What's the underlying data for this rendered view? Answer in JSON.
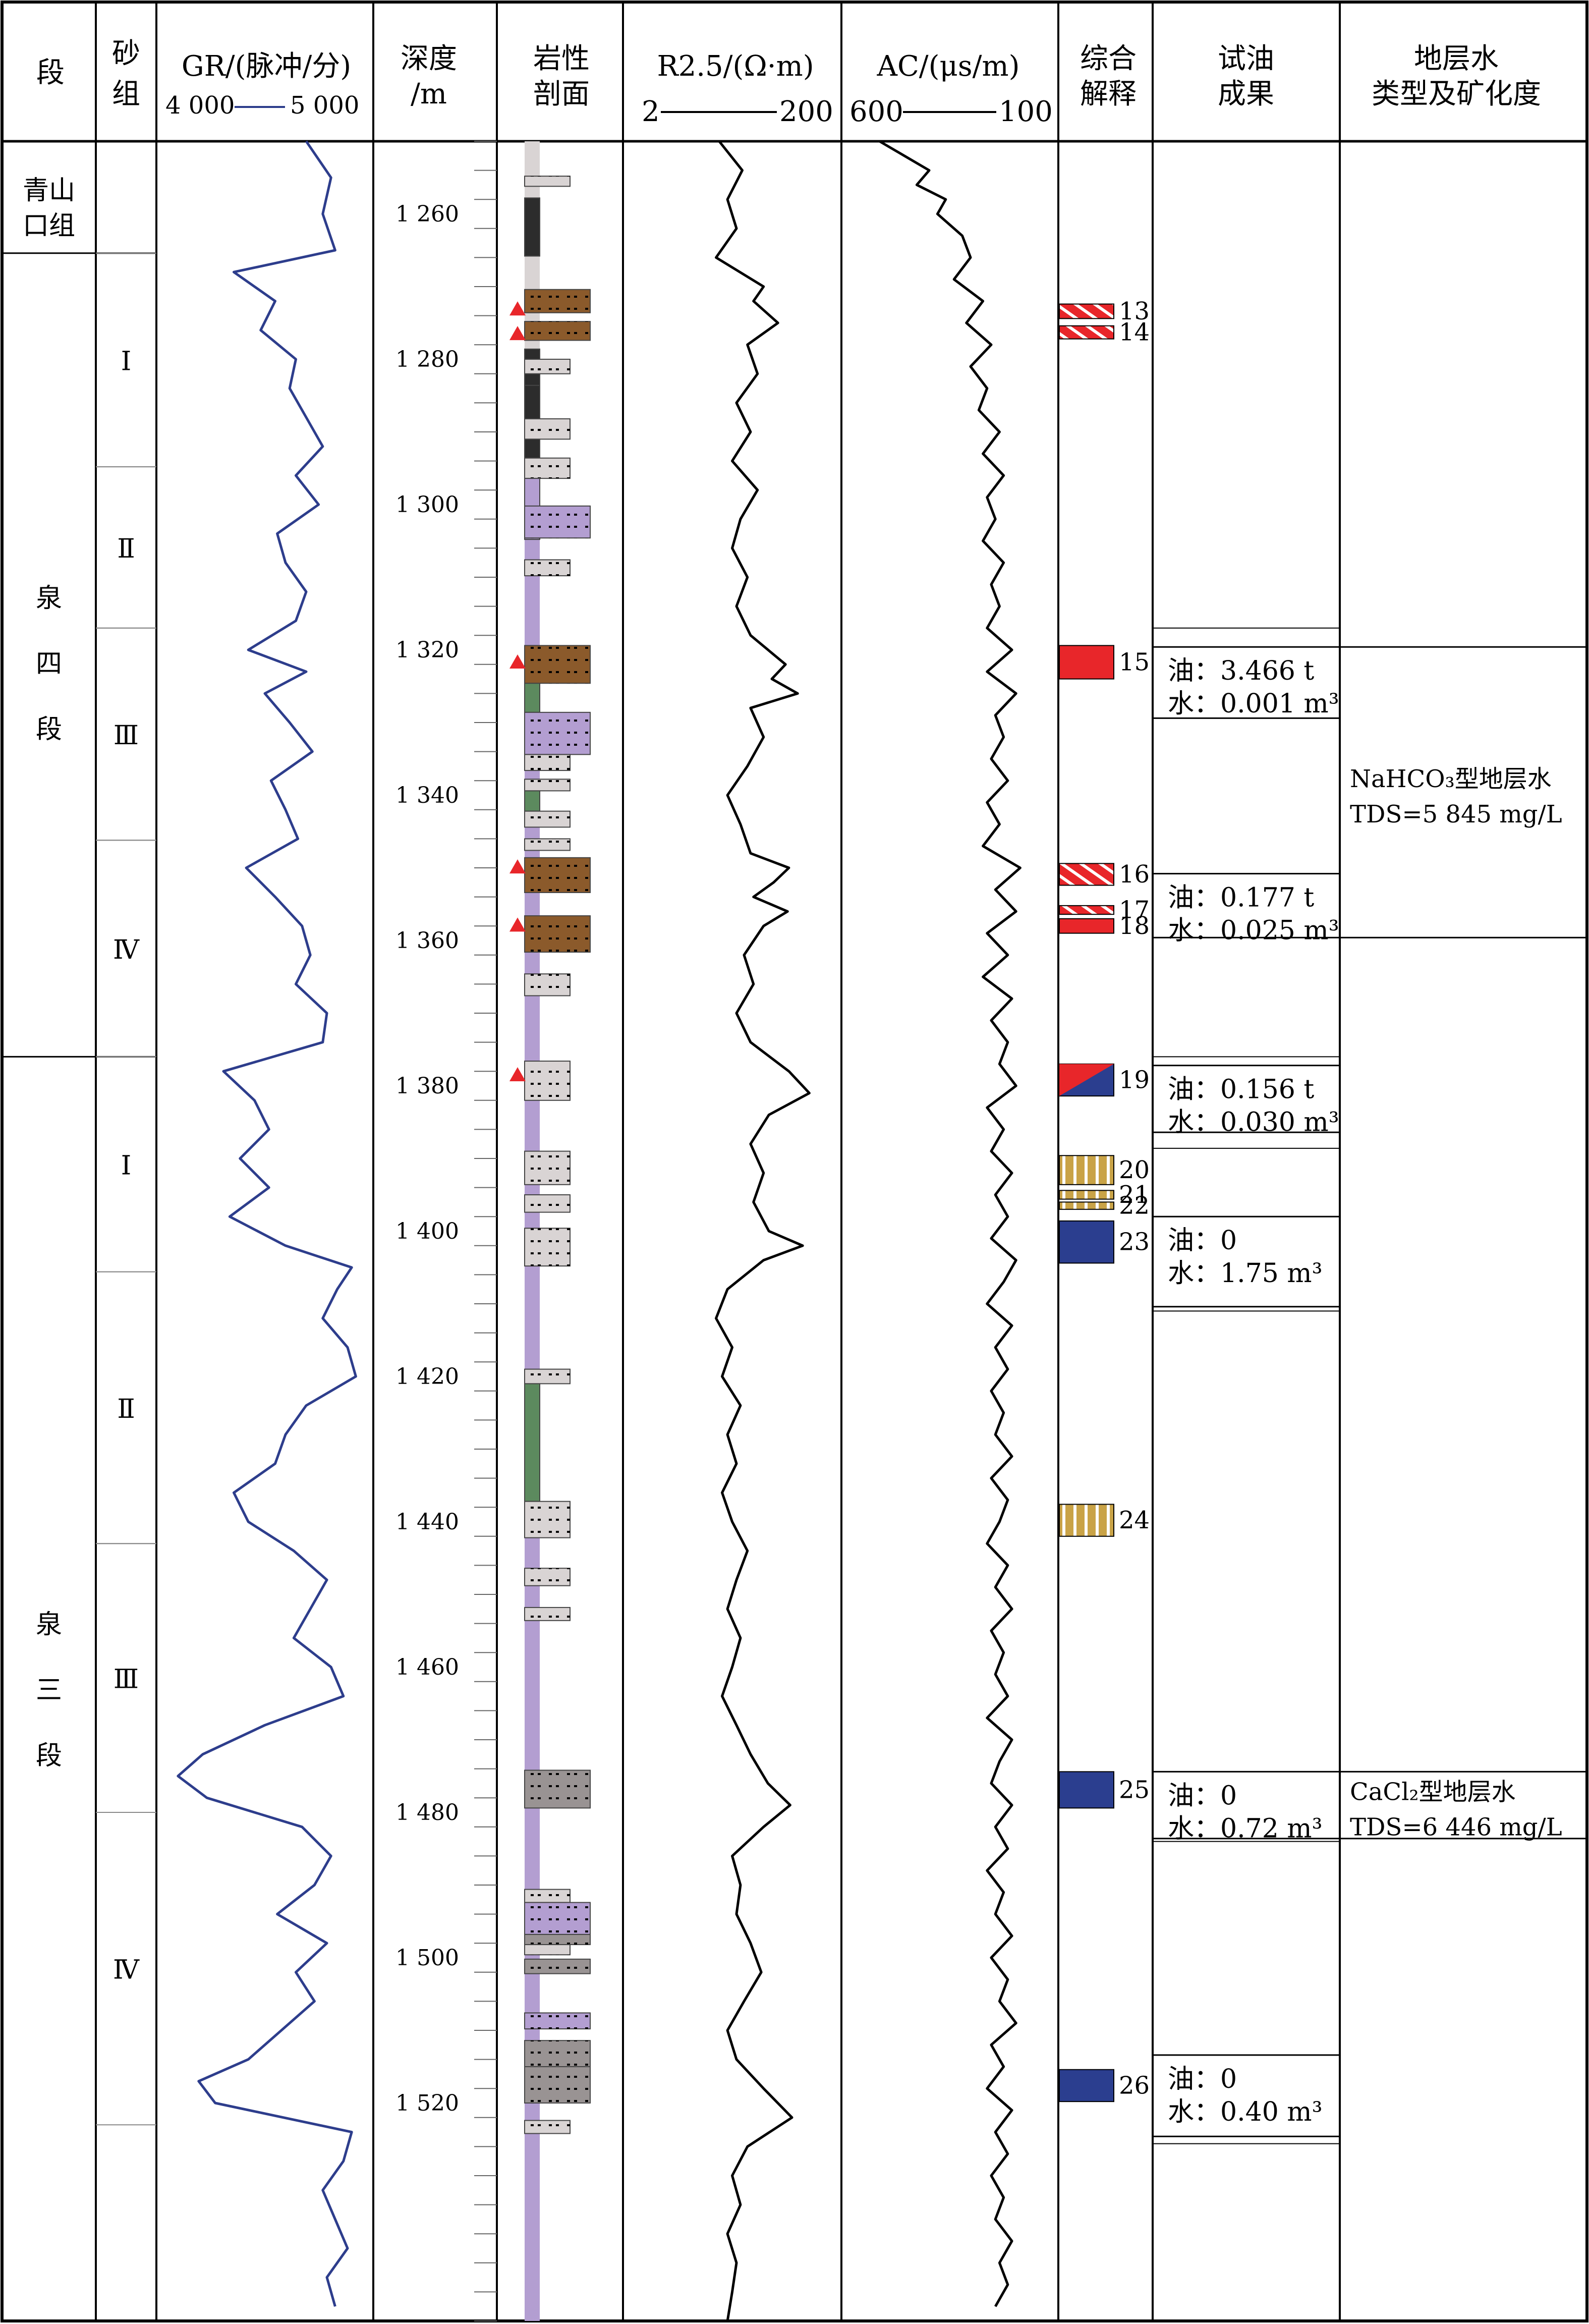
{
  "header": {
    "seg": "段",
    "sand_group": "砂组",
    "gr_label": "GR/(脉冲/分)",
    "gr_scale_left": "4 000",
    "gr_scale_right": "5 000",
    "depth_label": "深度",
    "depth_unit": "/m",
    "lith_label": "岩性",
    "lith_label2": "剖面",
    "r25_label": "R2.5/(Ω·m)",
    "r25_scale_left": "2",
    "r25_scale_right": "200",
    "ac_label": "AC/(μs/m)",
    "ac_scale_left": "600",
    "ac_scale_right": "100",
    "interp_label": "综合",
    "interp_label2": "解释",
    "test_label": "试油",
    "test_label2": "成果",
    "water_label": "地层水",
    "water_label2": "类型及矿化度"
  },
  "formations": [
    {
      "name": "青山口组",
      "top": 1250.0,
      "bottom": 1265.4
    },
    {
      "name": "泉四段",
      "top": 1265.4,
      "bottom": 1376.0
    },
    {
      "name": "泉三段",
      "top": 1376.0,
      "bottom": 1550.0
    }
  ],
  "sand_groups": [
    {
      "name": "Ⅰ",
      "top": 1265.4,
      "bottom": 1294.8
    },
    {
      "name": "Ⅱ",
      "top": 1294.8,
      "bottom": 1317.0
    },
    {
      "name": "Ⅲ",
      "top": 1317.0,
      "bottom": 1346.2
    },
    {
      "name": "Ⅳ",
      "top": 1346.2,
      "bottom": 1376.0
    },
    {
      "name": "Ⅰ",
      "top": 1376.0,
      "bottom": 1405.6
    },
    {
      "name": "Ⅱ",
      "top": 1405.6,
      "bottom": 1443.0
    },
    {
      "name": "Ⅲ",
      "top": 1443.0,
      "bottom": 1480.0
    },
    {
      "name": "Ⅳ",
      "top": 1480.0,
      "bottom": 1523.0
    }
  ],
  "depth_ticks": [
    "1 260",
    "1 280",
    "1 300",
    "1 320",
    "1 340",
    "1 360",
    "1 380",
    "1 400",
    "1 420",
    "1 440",
    "1 460",
    "1 480",
    "1 500",
    "1 520"
  ],
  "depth_tick_values": [
    1260,
    1280,
    1300,
    1320,
    1340,
    1360,
    1380,
    1400,
    1420,
    1440,
    1460,
    1480,
    1500,
    1520
  ],
  "interpretation": [
    {
      "num": "13",
      "top": 1272.4,
      "bottom": 1274.4,
      "kind": "oil-hatched"
    },
    {
      "num": "14",
      "top": 1275.4,
      "bottom": 1277.2,
      "kind": "oil-hatched"
    },
    {
      "num": "15",
      "top": 1319.4,
      "bottom": 1324.0,
      "kind": "oil"
    },
    {
      "num": "16",
      "top": 1349.4,
      "bottom": 1352.4,
      "kind": "oil-hatched"
    },
    {
      "num": "17",
      "top": 1355.2,
      "bottom": 1356.4,
      "kind": "oil-hatched"
    },
    {
      "num": "18",
      "top": 1357.0,
      "bottom": 1359.0,
      "kind": "oil"
    },
    {
      "num": "19",
      "top": 1377.0,
      "bottom": 1381.4,
      "kind": "oil-water"
    },
    {
      "num": "20",
      "top": 1389.6,
      "bottom": 1393.6,
      "kind": "dry"
    },
    {
      "num": "21",
      "top": 1394.4,
      "bottom": 1395.6,
      "kind": "dry"
    },
    {
      "num": "22",
      "top": 1396.0,
      "bottom": 1397.0,
      "kind": "dry"
    },
    {
      "num": "23",
      "top": 1398.6,
      "bottom": 1404.4,
      "kind": "water"
    },
    {
      "num": "24",
      "top": 1437.6,
      "bottom": 1442.0,
      "kind": "dry"
    },
    {
      "num": "25",
      "top": 1474.4,
      "bottom": 1479.4,
      "kind": "water"
    },
    {
      "num": "26",
      "top": 1515.4,
      "bottom": 1519.8,
      "kind": "water"
    }
  ],
  "test_results": [
    {
      "top": 1319.6,
      "bottom": 1329.4,
      "line1": "油：3.466 t",
      "line2": "水：0.001 m³"
    },
    {
      "top": 1350.8,
      "bottom": 1359.6,
      "line1": "油：0.177 t",
      "line2": "水：0.025 m³"
    },
    {
      "top": 1377.2,
      "bottom": 1386.4,
      "line1": "油：0.156 t",
      "line2": "水：0.030 m³"
    },
    {
      "top": 1398.0,
      "bottom": 1410.4,
      "line1": "油：0",
      "line2": "水：1.75 m³"
    },
    {
      "top": 1474.4,
      "bottom": 1483.6,
      "line1": "油：0",
      "line2": "水：0.72 m³"
    },
    {
      "top": 1513.4,
      "bottom": 1524.6,
      "line1": "油：0",
      "line2": "水：0.40 m³"
    }
  ],
  "water_types": [
    {
      "top": 1319.6,
      "bottom": 1359.6,
      "line1": "NaHCO₃型地层水",
      "line2": "TDS=5 845 mg/L"
    },
    {
      "top": 1474.4,
      "bottom": 1483.6,
      "line1": "CaCl₂型地层水",
      "line2": "TDS=6 446 mg/L"
    }
  ],
  "lithology": [
    {
      "top": 1254.8,
      "bottom": 1256.2,
      "kind": "siltstone"
    },
    {
      "top": 1257.8,
      "bottom": 1265.8,
      "kind": "mudstone-dark"
    },
    {
      "top": 1270.4,
      "bottom": 1273.6,
      "kind": "oil-sand"
    },
    {
      "top": 1274.8,
      "bottom": 1277.4,
      "kind": "oil-sand"
    },
    {
      "top": 1278.6,
      "bottom": 1283.6,
      "kind": "mudstone-dark"
    },
    {
      "top": 1280.0,
      "bottom": 1282.0,
      "kind": "siltstone"
    },
    {
      "top": 1283.6,
      "bottom": 1288.2,
      "kind": "mudstone-dark"
    },
    {
      "top": 1288.2,
      "bottom": 1291.0,
      "kind": "siltstone"
    },
    {
      "top": 1291.0,
      "bottom": 1293.6,
      "kind": "mudstone-dark"
    },
    {
      "top": 1293.6,
      "bottom": 1296.4,
      "kind": "siltstone"
    },
    {
      "top": 1296.4,
      "bottom": 1304.8,
      "kind": "purple-mud"
    },
    {
      "top": 1300.2,
      "bottom": 1304.6,
      "kind": "purple-silt"
    },
    {
      "top": 1307.6,
      "bottom": 1309.8,
      "kind": "siltstone"
    },
    {
      "top": 1319.4,
      "bottom": 1324.6,
      "kind": "oil-sand"
    },
    {
      "top": 1324.6,
      "bottom": 1328.6,
      "kind": "green-mud"
    },
    {
      "top": 1328.6,
      "bottom": 1334.4,
      "kind": "purple-silt"
    },
    {
      "top": 1334.4,
      "bottom": 1336.6,
      "kind": "siltstone"
    },
    {
      "top": 1337.8,
      "bottom": 1339.4,
      "kind": "siltstone"
    },
    {
      "top": 1339.4,
      "bottom": 1342.2,
      "kind": "green-mud"
    },
    {
      "top": 1342.2,
      "bottom": 1344.4,
      "kind": "siltstone"
    },
    {
      "top": 1346.0,
      "bottom": 1347.6,
      "kind": "siltstone"
    },
    {
      "top": 1348.6,
      "bottom": 1353.4,
      "kind": "oil-sand"
    },
    {
      "top": 1356.6,
      "bottom": 1361.6,
      "kind": "oil-sand"
    },
    {
      "top": 1364.6,
      "bottom": 1367.6,
      "kind": "siltstone"
    },
    {
      "top": 1376.6,
      "bottom": 1382.0,
      "kind": "siltstone"
    },
    {
      "top": 1389.0,
      "bottom": 1393.6,
      "kind": "siltstone"
    },
    {
      "top": 1395.0,
      "bottom": 1397.4,
      "kind": "siltstone"
    },
    {
      "top": 1399.6,
      "bottom": 1404.8,
      "kind": "siltstone"
    },
    {
      "top": 1419.0,
      "bottom": 1421.0,
      "kind": "siltstone"
    },
    {
      "top": 1421.0,
      "bottom": 1437.2,
      "kind": "green-mud"
    },
    {
      "top": 1437.2,
      "bottom": 1442.2,
      "kind": "siltstone"
    },
    {
      "top": 1446.4,
      "bottom": 1448.8,
      "kind": "siltstone"
    },
    {
      "top": 1451.8,
      "bottom": 1453.6,
      "kind": "siltstone"
    },
    {
      "top": 1474.2,
      "bottom": 1479.4,
      "kind": "gray-sand"
    },
    {
      "top": 1490.6,
      "bottom": 1492.4,
      "kind": "siltstone"
    },
    {
      "top": 1492.4,
      "bottom": 1496.8,
      "kind": "purple-silt"
    },
    {
      "top": 1496.8,
      "bottom": 1498.2,
      "kind": "gray-sand"
    },
    {
      "top": 1498.2,
      "bottom": 1499.6,
      "kind": "siltstone"
    },
    {
      "top": 1500.2,
      "bottom": 1502.2,
      "kind": "gray-sand"
    },
    {
      "top": 1507.6,
      "bottom": 1509.8,
      "kind": "purple-silt"
    },
    {
      "top": 1511.4,
      "bottom": 1515.0,
      "kind": "gray-sand"
    },
    {
      "top": 1515.0,
      "bottom": 1520.0,
      "kind": "gray-sand"
    },
    {
      "top": 1522.4,
      "bottom": 1524.2,
      "kind": "siltstone"
    }
  ],
  "oil_shows": [
    1273.0,
    1276.4,
    1321.6,
    1349.8,
    1357.8,
    1378.4
  ],
  "colors": {
    "oil": "#e8262a",
    "water": "#2b3e8f",
    "dry": "#c9a347",
    "gr_curve": "#2d3d8c",
    "oil_sand": "#8b5a2b",
    "purple": "#b39ed1",
    "green": "#5c8a5e",
    "dark_mud": "#2c2c2c",
    "silt": "#d9d4d4",
    "gray_sand": "#999393"
  },
  "chart_data": {
    "type": "line",
    "depth_range": [
      1250,
      1550
    ],
    "gr": {
      "name": "GR",
      "xlim": [
        4000,
        5000
      ],
      "depth": [
        1250,
        1255,
        1260,
        1265,
        1268,
        1272,
        1276,
        1280,
        1284,
        1288,
        1292,
        1296,
        1300,
        1304,
        1308,
        1312,
        1316,
        1320,
        1323,
        1326,
        1330,
        1334,
        1338,
        1342,
        1346,
        1350,
        1354,
        1358,
        1362,
        1366,
        1370,
        1374,
        1378,
        1382,
        1386,
        1390,
        1394,
        1398,
        1402,
        1405,
        1408,
        1412,
        1416,
        1420,
        1424,
        1428,
        1432,
        1436,
        1440,
        1444,
        1448,
        1452,
        1456,
        1460,
        1464,
        1468,
        1472,
        1475,
        1478,
        1482,
        1486,
        1490,
        1494,
        1498,
        1502,
        1506,
        1510,
        1514,
        1517,
        1520,
        1524,
        1528,
        1532,
        1536,
        1540,
        1544,
        1548
      ],
      "values": [
        4700,
        4820,
        4780,
        4840,
        4350,
        4550,
        4480,
        4650,
        4620,
        4700,
        4780,
        4650,
        4760,
        4560,
        4600,
        4700,
        4650,
        4420,
        4700,
        4500,
        4620,
        4730,
        4530,
        4600,
        4660,
        4410,
        4550,
        4680,
        4720,
        4650,
        4800,
        4780,
        4300,
        4450,
        4520,
        4380,
        4520,
        4330,
        4600,
        4920,
        4850,
        4780,
        4900,
        4940,
        4700,
        4600,
        4550,
        4350,
        4420,
        4640,
        4800,
        4720,
        4640,
        4820,
        4880,
        4500,
        4200,
        4080,
        4220,
        4680,
        4820,
        4740,
        4560,
        4800,
        4650,
        4740,
        4580,
        4420,
        4180,
        4260,
        4920,
        4880,
        4780,
        4840,
        4900,
        4800,
        4840
      ]
    },
    "r25": {
      "name": "R2.5",
      "xlim": [
        2,
        200
      ],
      "depth": [
        1250,
        1254,
        1258,
        1262,
        1266,
        1270,
        1272,
        1275,
        1278,
        1282,
        1286,
        1290,
        1294,
        1298,
        1302,
        1306,
        1310,
        1314,
        1318,
        1322,
        1324,
        1326,
        1328,
        1332,
        1336,
        1340,
        1344,
        1348,
        1350,
        1352,
        1354,
        1356,
        1358,
        1362,
        1366,
        1370,
        1374,
        1378,
        1381,
        1384,
        1388,
        1392,
        1396,
        1400,
        1402,
        1404,
        1408,
        1412,
        1416,
        1420,
        1424,
        1428,
        1432,
        1436,
        1440,
        1444,
        1448,
        1452,
        1456,
        1460,
        1464,
        1468,
        1472,
        1476,
        1479,
        1482,
        1486,
        1490,
        1494,
        1498,
        1502,
        1506,
        1510,
        1514,
        1518,
        1522,
        1526,
        1530,
        1534,
        1538,
        1542,
        1546,
        1550
      ],
      "values": [
        15,
        25,
        18,
        22,
        14,
        40,
        32,
        55,
        28,
        35,
        22,
        30,
        20,
        35,
        24,
        20,
        28,
        22,
        30,
        65,
        48,
        85,
        30,
        40,
        28,
        18,
        24,
        30,
        70,
        50,
        32,
        68,
        40,
        26,
        32,
        22,
        30,
        70,
        110,
        45,
        30,
        40,
        32,
        45,
        95,
        40,
        18,
        14,
        20,
        16,
        24,
        18,
        22,
        16,
        20,
        28,
        22,
        18,
        24,
        20,
        16,
        22,
        30,
        44,
        72,
        40,
        20,
        24,
        22,
        30,
        38,
        26,
        18,
        22,
        40,
        75,
        28,
        20,
        24,
        18,
        22,
        20,
        18
      ]
    },
    "ac": {
      "name": "AC",
      "xlim": [
        600,
        100
      ],
      "depth": [
        1250,
        1252,
        1254,
        1256,
        1258,
        1260,
        1263,
        1266,
        1269,
        1272,
        1275,
        1278,
        1281,
        1284,
        1287,
        1290,
        1293,
        1296,
        1299,
        1302,
        1305,
        1308,
        1311,
        1314,
        1317,
        1320,
        1323,
        1326,
        1329,
        1332,
        1335,
        1338,
        1341,
        1344,
        1347,
        1350,
        1353,
        1356,
        1359,
        1362,
        1365,
        1368,
        1371,
        1374,
        1377,
        1380,
        1383,
        1386,
        1389,
        1392,
        1395,
        1398,
        1401,
        1404,
        1407,
        1410,
        1413,
        1416,
        1419,
        1422,
        1425,
        1428,
        1431,
        1434,
        1437,
        1440,
        1443,
        1446,
        1449,
        1452,
        1455,
        1458,
        1461,
        1464,
        1467,
        1470,
        1473,
        1476,
        1479,
        1482,
        1485,
        1488,
        1491,
        1494,
        1497,
        1500,
        1503,
        1506,
        1509,
        1512,
        1515,
        1518,
        1521,
        1524,
        1527,
        1530,
        1533,
        1536,
        1539,
        1542,
        1545,
        1548
      ],
      "values": [
        520,
        460,
        400,
        430,
        360,
        380,
        320,
        300,
        340,
        270,
        310,
        250,
        300,
        260,
        280,
        230,
        270,
        220,
        260,
        240,
        270,
        220,
        250,
        230,
        260,
        200,
        260,
        190,
        240,
        220,
        250,
        210,
        260,
        230,
        270,
        180,
        240,
        190,
        260,
        210,
        270,
        200,
        250,
        210,
        230,
        190,
        260,
        220,
        250,
        200,
        240,
        210,
        250,
        190,
        220,
        260,
        200,
        240,
        210,
        250,
        220,
        240,
        200,
        250,
        210,
        230,
        260,
        210,
        240,
        200,
        250,
        220,
        240,
        210,
        260,
        200,
        230,
        250,
        200,
        240,
        210,
        260,
        220,
        240,
        200,
        250,
        210,
        230,
        190,
        250,
        220,
        260,
        200,
        240,
        210,
        250,
        220,
        240,
        200,
        230,
        210,
        240
      ]
    }
  }
}
